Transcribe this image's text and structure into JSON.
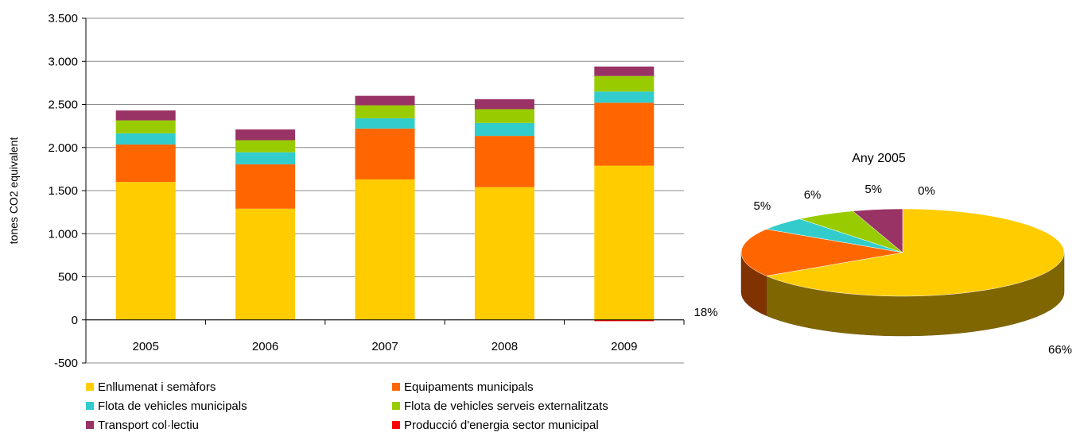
{
  "chart_data": [
    {
      "type": "bar",
      "stacked": true,
      "title": "",
      "ylabel": "tones CO2 equivalent",
      "xlabel": "",
      "ylim": [
        -500,
        3500
      ],
      "yticks": [
        -500,
        0,
        500,
        1000,
        1500,
        2000,
        2500,
        3000,
        3500
      ],
      "ytick_labels": [
        "-500",
        "0",
        "500",
        "1.000",
        "1.500",
        "2.000",
        "2.500",
        "3.000",
        "3.500"
      ],
      "categories": [
        "2005",
        "2006",
        "2007",
        "2008",
        "2009"
      ],
      "grid": true,
      "legend_position": "bottom",
      "series": [
        {
          "name": "Enllumenat i semàfors",
          "color": "#FFCC00",
          "values": [
            1600,
            1290,
            1630,
            1540,
            1790
          ]
        },
        {
          "name": "Equipaments municipals",
          "color": "#FF6600",
          "values": [
            435,
            515,
            590,
            595,
            730
          ]
        },
        {
          "name": "Flota de vehicles municipals",
          "color": "#33CCCC",
          "values": [
            130,
            140,
            120,
            150,
            130
          ]
        },
        {
          "name": "Flota de vehicles serveis externalitzats",
          "color": "#99CC00",
          "values": [
            150,
            140,
            150,
            160,
            180
          ]
        },
        {
          "name": "Transport col·lectiu",
          "color": "#993366",
          "values": [
            115,
            125,
            110,
            115,
            110
          ]
        },
        {
          "name": "Producció d'energia sector municipal",
          "color": "#FF0000",
          "values": [
            0,
            0,
            0,
            0,
            -15
          ]
        }
      ]
    },
    {
      "type": "pie",
      "title": "Any 2005",
      "labels": [
        "Enllumenat i semàfors",
        "Equipaments municipals",
        "Flota de vehicles municipals",
        "Flota de vehicles serveis externalitzats",
        "Transport col·lectiu",
        "Producció d'energia sector municipal"
      ],
      "values": [
        66,
        18,
        5,
        6,
        5,
        0
      ],
      "value_labels": [
        "66%",
        "18%",
        "5%",
        "6%",
        "5%",
        "0%"
      ],
      "colors": [
        "#FFCC00",
        "#FF6600",
        "#33CCCC",
        "#99CC00",
        "#993366",
        "#FF0000"
      ]
    }
  ]
}
